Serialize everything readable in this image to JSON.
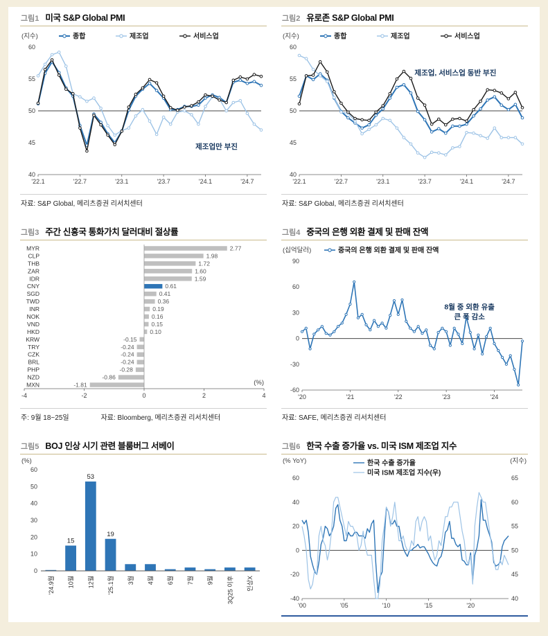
{
  "chart_data": [
    {
      "type": "line",
      "fig": "그림1",
      "title": "미국 S&P Global PMI",
      "unit_label": "(지수)",
      "source": "자료: S&P Global, 메리츠증권 리서치센터",
      "x_tick_labels": [
        "'22.1",
        "'22.7",
        "'23.1",
        "'23.7",
        "'24.1",
        "'24.7"
      ],
      "x_tick_idx": [
        0,
        6,
        12,
        18,
        24,
        30
      ],
      "ylim": [
        40,
        60
      ],
      "yticks": [
        60,
        55,
        50,
        45,
        40
      ],
      "baseline": 50,
      "annotation": {
        "lines": [
          "제조업만 부진"
        ],
        "x": 0.8,
        "y": 44
      },
      "series": [
        {
          "name": "종합",
          "color": "#2e75b6",
          "width": 2,
          "marker": true,
          "mr": 1.8,
          "values": [
            51.1,
            55.9,
            57.7,
            56.0,
            53.6,
            52.3,
            47.7,
            44.6,
            49.5,
            48.2,
            46.4,
            45.0,
            46.8,
            50.1,
            52.3,
            53.4,
            54.3,
            53.2,
            52.0,
            50.2,
            50.2,
            50.7,
            50.7,
            50.9,
            52.0,
            52.5,
            52.1,
            51.3,
            54.5,
            54.8,
            54.3,
            54.6,
            54.0
          ]
        },
        {
          "name": "제조업",
          "color": "#9dc3e6",
          "width": 1.4,
          "marker": true,
          "mr": 1.8,
          "values": [
            55.5,
            57.3,
            58.8,
            59.2,
            57.0,
            52.7,
            52.2,
            51.5,
            52.0,
            50.4,
            47.7,
            46.2,
            46.9,
            47.3,
            49.2,
            50.2,
            48.4,
            46.3,
            49.0,
            47.9,
            49.8,
            50.0,
            49.4,
            47.9,
            50.7,
            52.2,
            51.9,
            50.0,
            51.3,
            51.6,
            49.6,
            47.9,
            47.0
          ]
        },
        {
          "name": "서비스업",
          "color": "#1a1a1a",
          "width": 1.4,
          "marker": true,
          "mr": 1.8,
          "values": [
            51.2,
            56.5,
            58.0,
            55.6,
            53.4,
            52.7,
            47.3,
            43.7,
            49.3,
            47.8,
            46.2,
            44.7,
            46.8,
            50.6,
            52.6,
            53.6,
            54.9,
            54.4,
            52.3,
            50.5,
            50.1,
            50.6,
            50.8,
            51.4,
            52.5,
            52.3,
            51.7,
            51.3,
            54.8,
            55.3,
            55.0,
            55.7,
            55.4
          ]
        }
      ]
    },
    {
      "type": "line",
      "fig": "그림2",
      "title": "유로존 S&P Global PMI",
      "unit_label": "(지수)",
      "source": "자료: S&P Global, 메리츠증권 리서치센터",
      "x_tick_labels": [
        "'22.1",
        "'22.7",
        "'23.1",
        "'23.7",
        "'24.1",
        "'24.7"
      ],
      "x_tick_idx": [
        0,
        6,
        12,
        18,
        24,
        30
      ],
      "ylim": [
        40,
        60
      ],
      "yticks": [
        60,
        55,
        50,
        45,
        40
      ],
      "baseline": 50,
      "annotation": {
        "lines": [
          "제조업, 서비스업 동반 부진"
        ],
        "x": 0.7,
        "y": 55.6
      },
      "series": [
        {
          "name": "종합",
          "color": "#2e75b6",
          "width": 2,
          "marker": true,
          "mr": 1.8,
          "values": [
            52.3,
            55.5,
            54.9,
            55.8,
            54.8,
            52.0,
            49.9,
            48.9,
            48.1,
            47.3,
            47.8,
            49.3,
            50.3,
            52.0,
            53.7,
            54.1,
            52.8,
            49.9,
            48.6,
            46.7,
            47.2,
            46.5,
            47.6,
            47.6,
            47.9,
            49.2,
            50.3,
            51.7,
            52.2,
            50.9,
            50.2,
            51.0,
            48.9
          ]
        },
        {
          "name": "제조업",
          "color": "#9dc3e6",
          "width": 1.4,
          "marker": true,
          "mr": 1.8,
          "values": [
            58.7,
            58.2,
            56.5,
            55.5,
            54.6,
            52.1,
            49.8,
            49.6,
            48.4,
            46.4,
            47.1,
            47.8,
            48.8,
            48.5,
            47.3,
            45.8,
            44.8,
            43.4,
            42.7,
            43.5,
            43.4,
            43.1,
            44.2,
            44.4,
            46.6,
            46.5,
            46.1,
            45.7,
            47.3,
            45.8,
            45.8,
            45.8,
            44.8
          ]
        },
        {
          "name": "서비스업",
          "color": "#1a1a1a",
          "width": 1.4,
          "marker": true,
          "mr": 1.8,
          "values": [
            51.1,
            55.5,
            55.6,
            57.7,
            56.1,
            53.0,
            51.2,
            49.8,
            48.8,
            48.6,
            48.5,
            49.8,
            50.8,
            52.7,
            55.0,
            56.2,
            55.1,
            52.0,
            50.9,
            47.9,
            48.7,
            47.8,
            48.7,
            48.8,
            48.4,
            50.2,
            51.5,
            53.3,
            53.2,
            52.8,
            51.9,
            52.9,
            50.5
          ]
        }
      ]
    },
    {
      "type": "hbar",
      "fig": "그림3",
      "title": "주간 신흥국 통화가치 달러대비 절상률",
      "note": "주: 9월 18~25일",
      "source": "자료: Bloomberg, 메리츠증권 리서치센터",
      "categories": [
        "MYR",
        "CLP",
        "THB",
        "ZAR",
        "IDR",
        "CNY",
        "SGD",
        "TWD",
        "INR",
        "NOK",
        "VND",
        "HKD",
        "KRW",
        "TRY",
        "CZK",
        "BRL",
        "PHP",
        "NZD",
        "MXN"
      ],
      "values": [
        2.77,
        1.98,
        1.72,
        1.6,
        1.59,
        0.61,
        0.41,
        0.36,
        0.19,
        0.16,
        0.15,
        0.1,
        -0.15,
        -0.24,
        -0.24,
        -0.24,
        -0.28,
        -0.86,
        -1.81
      ],
      "value_labels": [
        "2.77",
        "1.98",
        "1.72",
        "1.60",
        "1.59",
        "0.61",
        "0.41",
        "0.36",
        "0.19",
        "0.16",
        "0.15",
        "0.10",
        "-0.15",
        "-0.24",
        "-0.24",
        "-0.24",
        "-0.28",
        "-0.86",
        "-1.81"
      ],
      "highlight": "CNY",
      "bar_color": "#bfbfbf",
      "highlight_color": "#2e75b6",
      "xlim": [
        -4,
        4
      ],
      "xticks": [
        -4,
        -2,
        0,
        2,
        4
      ],
      "pct_label": "(%)"
    },
    {
      "type": "line",
      "fig": "그림4",
      "title": "중국의 은행 외환 결제 및 판매 잔액",
      "unit_label": "(십억달러)",
      "source": "자료: SAFE, 메리츠증권 리서치센터",
      "x_tick_labels": [
        "'20",
        "'21",
        "'22",
        "'23",
        "'24"
      ],
      "x_tick_idx": [
        0,
        12,
        24,
        36,
        48
      ],
      "ylim": [
        -60,
        90
      ],
      "yticks": [
        90,
        60,
        30,
        0,
        -30,
        -60
      ],
      "baseline": 0,
      "annotation": {
        "lines": [
          "8월 중 외환 유출",
          "큰 폭 감소"
        ],
        "x": 0.76,
        "y": 34
      },
      "series": [
        {
          "name": "중국의 은행 외환 결제 및 판매 잔액",
          "color": "#2e75b6",
          "width": 1.6,
          "marker": true,
          "mr": 1.6,
          "values": [
            8,
            12,
            -12,
            5,
            10,
            14,
            6,
            4,
            8,
            14,
            18,
            28,
            40,
            66,
            24,
            28,
            16,
            10,
            21,
            14,
            18,
            12,
            27,
            44,
            28,
            45,
            20,
            12,
            8,
            14,
            6,
            10,
            -8,
            -12,
            7,
            12,
            8,
            -8,
            12,
            5,
            -6,
            25,
            7,
            -12,
            4,
            -18,
            2,
            12,
            -6,
            -14,
            -22,
            -30,
            -20,
            -36,
            -54,
            -3
          ]
        }
      ]
    },
    {
      "type": "bar",
      "fig": "그림5",
      "title": "BOJ 인상 시기 관련 블룸버그 서베이",
      "unit_label": "(%)",
      "categories": [
        "'24.9월",
        "10월",
        "12월",
        "'25.1월",
        "3월",
        "4월",
        "6월",
        "7월",
        "9월",
        "3Q25 이후",
        "인상X"
      ],
      "values": [
        0.5,
        15,
        53,
        19,
        4,
        4,
        1,
        2,
        1,
        2,
        2
      ],
      "bar_labels": [
        "",
        "15",
        "53",
        "19",
        "",
        "",
        "",
        "",
        "",
        "",
        ""
      ],
      "ylim": [
        0,
        60
      ],
      "yticks": [
        60,
        50,
        40,
        30,
        20,
        10,
        0
      ],
      "bar_color": "#2e75b6"
    },
    {
      "type": "line",
      "fig": "그림6",
      "title": "한국 수출 증가율 vs. 미국 ISM 제조업 지수",
      "unit_label": "(% YoY)",
      "unit_label_right": "(지수)",
      "x_tick_labels": [
        "'00",
        "'05",
        "'10",
        "'15",
        "'20"
      ],
      "x_tick_idx": [
        0,
        20,
        40,
        60,
        80
      ],
      "ylim": [
        -40,
        60
      ],
      "yticks": [
        60,
        40,
        20,
        0,
        -20,
        -40
      ],
      "ylim2": [
        40,
        65
      ],
      "yticks2": [
        65,
        60,
        55,
        50,
        45,
        40
      ],
      "baseline": 0,
      "series": [
        {
          "name": "한국 수출 증가율",
          "color": "#2e75b6",
          "width": 1.4,
          "marker": false,
          "values": [
            25,
            22,
            25,
            15,
            -5,
            -12,
            -18,
            -20,
            -10,
            5,
            10,
            20,
            18,
            12,
            15,
            20,
            35,
            38,
            25,
            20,
            8,
            8,
            15,
            12,
            12,
            15,
            15,
            12,
            12,
            12,
            10,
            18,
            15,
            22,
            25,
            -10,
            -35,
            -22,
            -18,
            10,
            35,
            32,
            22,
            22,
            25,
            20,
            20,
            10,
            2,
            -2,
            -5,
            0,
            0,
            2,
            3,
            5,
            2,
            3,
            3,
            0,
            -3,
            -7,
            -10,
            -12,
            -13,
            -7,
            -5,
            2,
            15,
            17,
            24,
            10,
            10,
            5,
            3,
            5,
            -8,
            -9,
            -12,
            -12,
            -2,
            -25,
            -4,
            2,
            12,
            42,
            25,
            25,
            18,
            13,
            7,
            -10,
            -13,
            -12,
            -10,
            3,
            8,
            10,
            12
          ]
        },
        {
          "name": "미국 ISM 제조업 지수(우)",
          "color": "#9dc3e6",
          "width": 1.2,
          "marker": false,
          "axis": "right",
          "values": [
            55,
            53,
            50,
            44,
            42,
            43,
            46,
            45,
            53,
            55,
            52,
            51,
            48,
            50,
            54,
            60,
            61,
            61,
            59,
            57,
            55,
            53,
            56,
            55,
            55,
            54,
            53,
            50,
            51,
            54,
            51,
            49,
            49,
            49,
            44,
            40,
            40,
            43,
            52,
            55,
            59,
            58,
            55,
            57,
            60,
            56,
            52,
            52,
            53,
            51,
            50,
            50,
            52,
            51,
            56,
            57,
            54,
            56,
            57,
            56,
            52,
            53,
            50,
            48,
            49,
            52,
            51,
            54,
            57,
            57,
            59,
            59,
            60,
            60,
            60,
            57,
            54,
            52,
            48,
            47,
            49,
            43,
            55,
            59,
            62,
            61,
            60,
            60,
            57,
            54,
            51,
            48,
            46,
            46,
            48,
            47,
            49,
            48,
            47
          ]
        }
      ]
    }
  ]
}
